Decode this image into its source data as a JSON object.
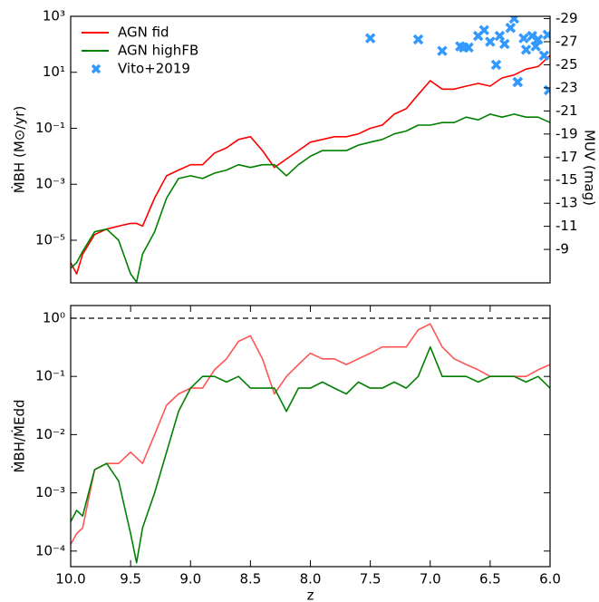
{
  "chart_data": [
    {
      "type": "line",
      "ylabel": "ṀBH (M⊙/yr)",
      "y2label": "MUV (mag)",
      "yscale": "log",
      "ylim": [
        3e-07,
        1000
      ],
      "yticks": [
        {
          "value": 1000,
          "label": "10³"
        },
        {
          "value": 10,
          "label": "10¹"
        },
        {
          "value": 0.1,
          "label": "10⁻¹"
        },
        {
          "value": 0.001,
          "label": "10⁻³"
        },
        {
          "value": 1e-05,
          "label": "10⁻⁵"
        }
      ],
      "y2lim": [
        -6.1,
        -29.2
      ],
      "y2ticks": [
        -29,
        -27,
        -25,
        -23,
        -21,
        -19,
        -17,
        -15,
        -13,
        -11,
        -9
      ],
      "xlim": [
        10,
        6
      ],
      "legend": "upper left",
      "x": [
        10,
        9.95,
        9.9,
        9.8,
        9.7,
        9.6,
        9.5,
        9.45,
        9.4,
        9.3,
        9.2,
        9.1,
        9.0,
        8.9,
        8.8,
        8.7,
        8.6,
        8.5,
        8.4,
        8.3,
        8.2,
        8.1,
        8.0,
        7.9,
        7.8,
        7.7,
        7.6,
        7.5,
        7.4,
        7.3,
        7.2,
        7.1,
        7.0,
        6.9,
        6.8,
        6.7,
        6.6,
        6.5,
        6.4,
        6.3,
        6.2,
        6.1,
        6.0
      ],
      "series": [
        {
          "name": "AGN fid",
          "color": "#ff0000",
          "values": [
            1.6e-06,
            6.3e-07,
            3.2e-06,
            1.6e-05,
            2.5e-05,
            3.2e-05,
            4e-05,
            4e-05,
            3.2e-05,
            0.00032,
            0.002,
            0.0032,
            0.005,
            0.005,
            0.013,
            0.02,
            0.04,
            0.05,
            0.016,
            0.004,
            0.008,
            0.016,
            0.032,
            0.04,
            0.05,
            0.05,
            0.063,
            0.1,
            0.13,
            0.32,
            0.5,
            1.6,
            5,
            2.5,
            2.5,
            3.2,
            4,
            3.2,
            6.3,
            8,
            13,
            16,
            40
          ]
        },
        {
          "name": "AGN highFB",
          "color": "#008000",
          "values": [
            1e-06,
            1.6e-06,
            4e-06,
            2e-05,
            2.5e-05,
            1e-05,
            6.3e-07,
            3.2e-07,
            3.2e-06,
            2e-05,
            0.00032,
            0.0016,
            0.002,
            0.0016,
            0.0025,
            0.0032,
            0.005,
            0.004,
            0.005,
            0.005,
            0.002,
            0.005,
            0.01,
            0.016,
            0.016,
            0.016,
            0.025,
            0.032,
            0.04,
            0.063,
            0.08,
            0.13,
            0.13,
            0.16,
            0.16,
            0.25,
            0.2,
            0.32,
            0.25,
            0.32,
            0.25,
            0.25,
            0.16
          ]
        },
        {
          "name": "Vito+2019",
          "color": "#3399ff",
          "type": "scatter",
          "axis": "y2",
          "x": [
            7.5,
            7.1,
            6.9,
            6.75,
            6.72,
            6.68,
            6.6,
            6.55,
            6.5,
            6.45,
            6.42,
            6.38,
            6.33,
            6.3,
            6.27,
            6.22,
            6.2,
            6.15,
            6.12,
            6.1,
            6.05,
            6.02,
            6.27,
            6.01
          ],
          "values": [
            -27.3,
            -27.2,
            -26.2,
            -26.6,
            -26.5,
            -26.5,
            -27.5,
            -28,
            -27,
            -25,
            -27.5,
            -26.8,
            -28.2,
            -29,
            -23.5,
            -27.3,
            -26.3,
            -27.5,
            -26.6,
            -27.2,
            -25.8,
            -27.6,
            -23.5,
            -22.8
          ]
        }
      ]
    },
    {
      "type": "line",
      "ylabel": "ṀBH/ṀEdd",
      "xlabel": "z",
      "yscale": "log",
      "ylim": [
        5.4e-05,
        1.65
      ],
      "yticks": [
        {
          "value": 1,
          "label": "10⁰"
        },
        {
          "value": 0.1,
          "label": "10⁻¹"
        },
        {
          "value": 0.01,
          "label": "10⁻²"
        },
        {
          "value": 0.001,
          "label": "10⁻³"
        },
        {
          "value": 0.0001,
          "label": "10⁻⁴"
        }
      ],
      "xlim": [
        10,
        6
      ],
      "xticks": [
        {
          "value": 10,
          "label": "10.0"
        },
        {
          "value": 9.5,
          "label": "9.5"
        },
        {
          "value": 9,
          "label": "9.0"
        },
        {
          "value": 8.5,
          "label": "8.5"
        },
        {
          "value": 8,
          "label": "8.0"
        },
        {
          "value": 7.5,
          "label": "7.5"
        },
        {
          "value": 7,
          "label": "7.0"
        },
        {
          "value": 6.5,
          "label": "6.5"
        },
        {
          "value": 6,
          "label": "6.0"
        }
      ],
      "hline": 1,
      "x": [
        10,
        9.95,
        9.9,
        9.8,
        9.7,
        9.6,
        9.5,
        9.45,
        9.4,
        9.3,
        9.2,
        9.1,
        9.0,
        8.9,
        8.8,
        8.7,
        8.6,
        8.5,
        8.4,
        8.3,
        8.2,
        8.1,
        8.0,
        7.9,
        7.8,
        7.7,
        7.6,
        7.5,
        7.4,
        7.3,
        7.2,
        7.1,
        7.0,
        6.9,
        6.8,
        6.7,
        6.6,
        6.5,
        6.4,
        6.3,
        6.2,
        6.1,
        6.0
      ],
      "series": [
        {
          "color": "#ff5555",
          "values": [
            0.00013,
            0.0002,
            0.00025,
            0.0025,
            0.0032,
            0.0032,
            0.005,
            0.004,
            0.0032,
            0.01,
            0.032,
            0.05,
            0.063,
            0.063,
            0.13,
            0.2,
            0.4,
            0.5,
            0.2,
            0.05,
            0.1,
            0.16,
            0.25,
            0.2,
            0.2,
            0.16,
            0.2,
            0.25,
            0.32,
            0.32,
            0.32,
            0.63,
            0.8,
            0.32,
            0.2,
            0.16,
            0.13,
            0.1,
            0.1,
            0.1,
            0.1,
            0.13,
            0.16
          ]
        },
        {
          "color": "#008000",
          "values": [
            0.00032,
            0.0005,
            0.0004,
            0.0025,
            0.0032,
            0.0016,
            0.0002,
            6.3e-05,
            0.00025,
            0.001,
            0.005,
            0.025,
            0.063,
            0.1,
            0.1,
            0.08,
            0.1,
            0.063,
            0.063,
            0.063,
            0.025,
            0.063,
            0.063,
            0.08,
            0.063,
            0.05,
            0.08,
            0.063,
            0.063,
            0.08,
            0.063,
            0.1,
            0.32,
            0.1,
            0.1,
            0.1,
            0.08,
            0.1,
            0.1,
            0.1,
            0.08,
            0.1,
            0.063
          ]
        }
      ]
    }
  ]
}
